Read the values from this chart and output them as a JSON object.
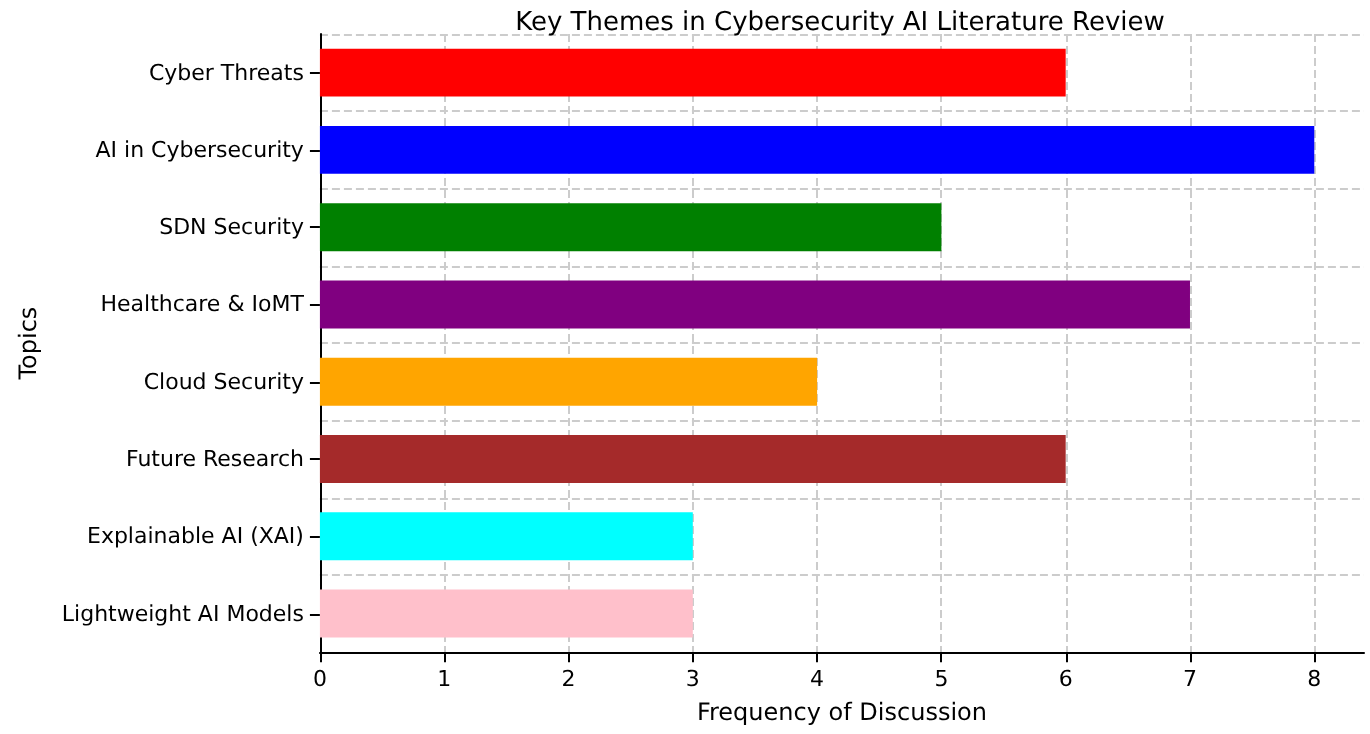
{
  "chart_data": {
    "type": "bar",
    "orientation": "horizontal",
    "title": "Key Themes in Cybersecurity AI Literature Review",
    "xlabel": "Frequency of Discussion",
    "ylabel": "Topics",
    "categories": [
      "Cyber Threats",
      "AI in Cybersecurity",
      "SDN Security",
      "Healthcare & IoMT",
      "Cloud Security",
      "Future Research",
      "Explainable AI (XAI)",
      "Lightweight AI Models"
    ],
    "values": [
      6,
      8,
      5,
      7,
      4,
      6,
      3,
      3
    ],
    "colors": [
      "#ff0000",
      "#0000ff",
      "#008000",
      "#800080",
      "#ffa500",
      "#a52a2a",
      "#00ffff",
      "#ffc0cb"
    ],
    "xlim": [
      0,
      8.4
    ],
    "xticks": [
      0,
      1,
      2,
      3,
      4,
      5,
      6,
      7,
      8
    ],
    "grid": true
  }
}
